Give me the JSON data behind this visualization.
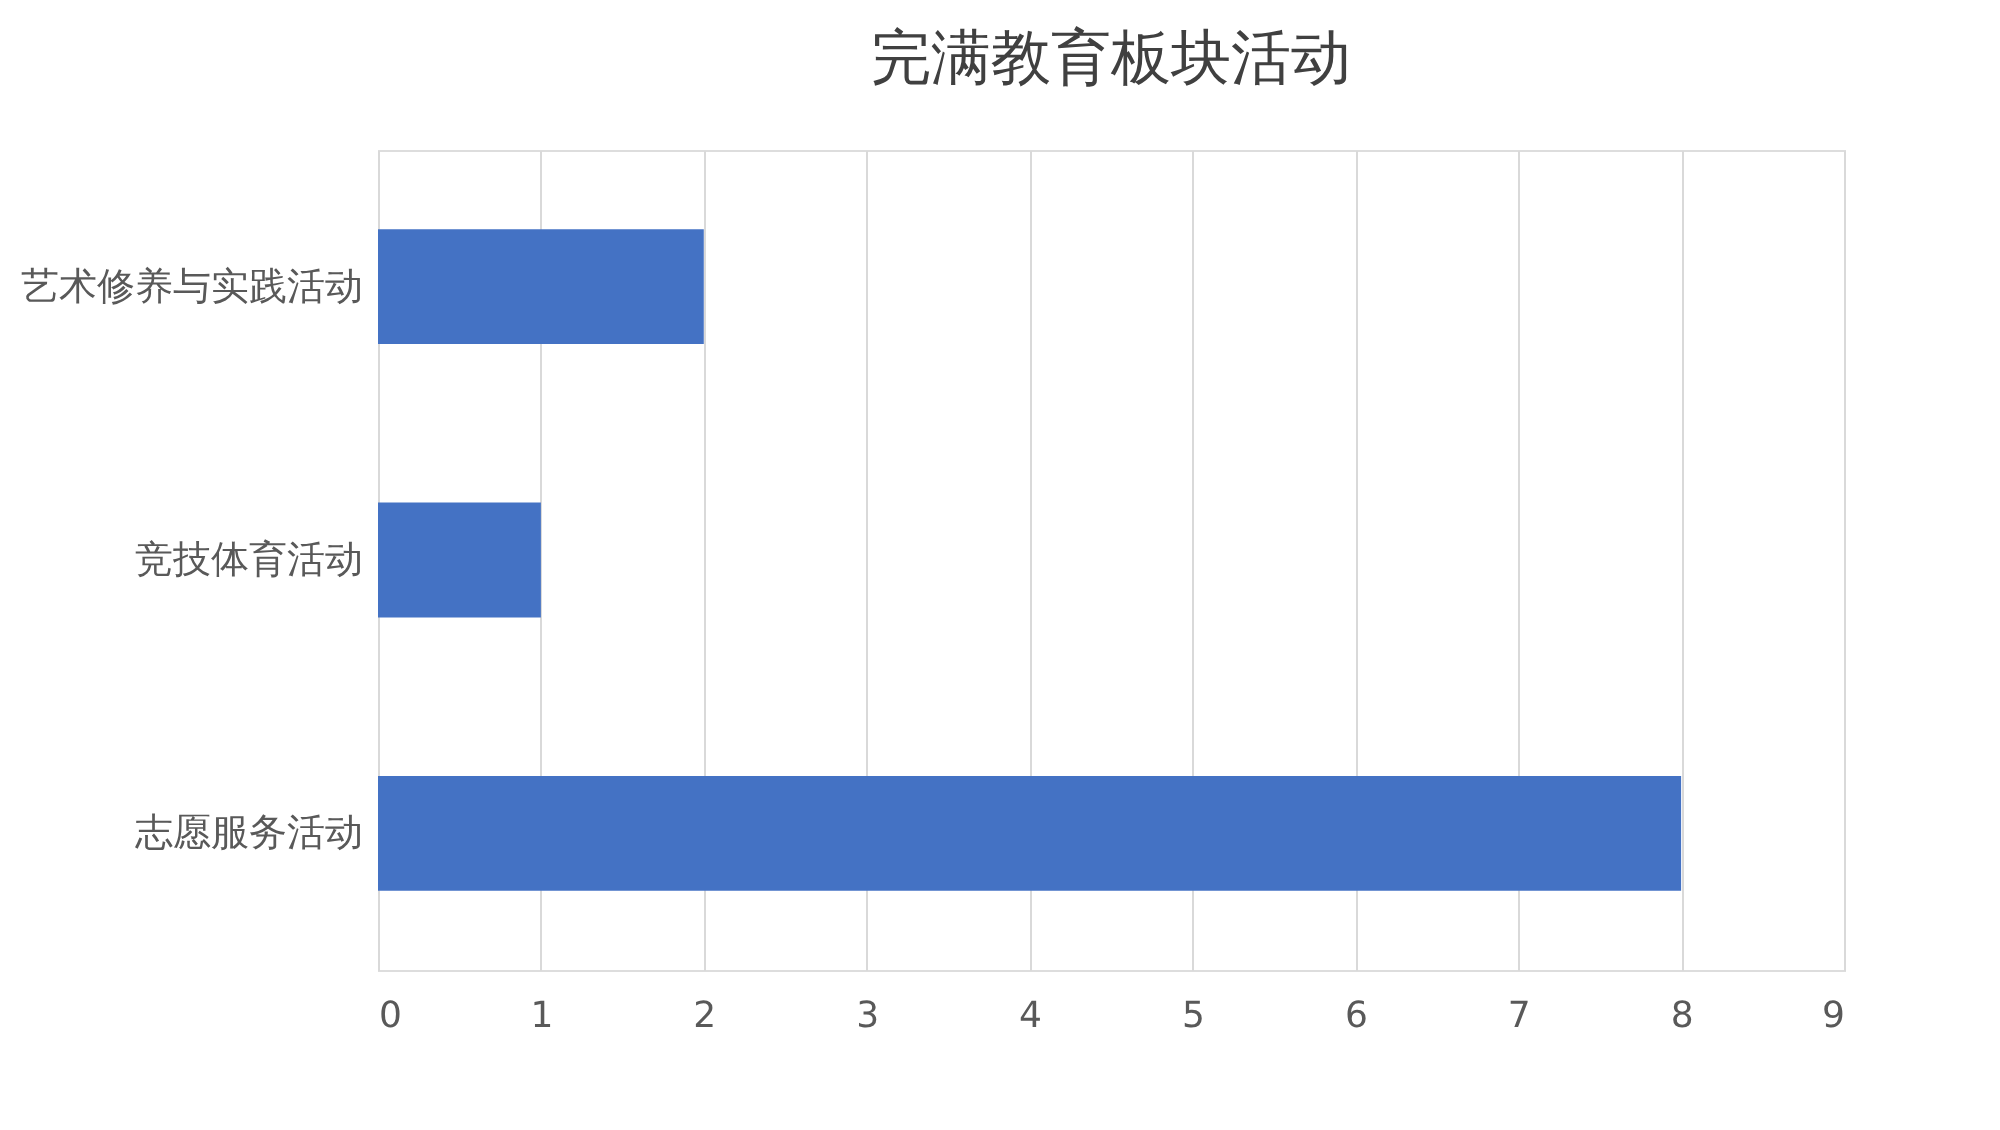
{
  "chart_data": {
    "type": "bar",
    "orientation": "horizontal",
    "title": "完满教育板块活动",
    "categories": [
      "艺术修养与实践活动",
      "竞技体育活动",
      "志愿服务活动"
    ],
    "values": [
      2,
      1,
      8
    ],
    "color": "#4472c4",
    "xlim": [
      0,
      9
    ],
    "xticks": [
      0,
      1,
      2,
      3,
      4,
      5,
      6,
      7,
      8,
      9
    ],
    "grid": "x"
  }
}
